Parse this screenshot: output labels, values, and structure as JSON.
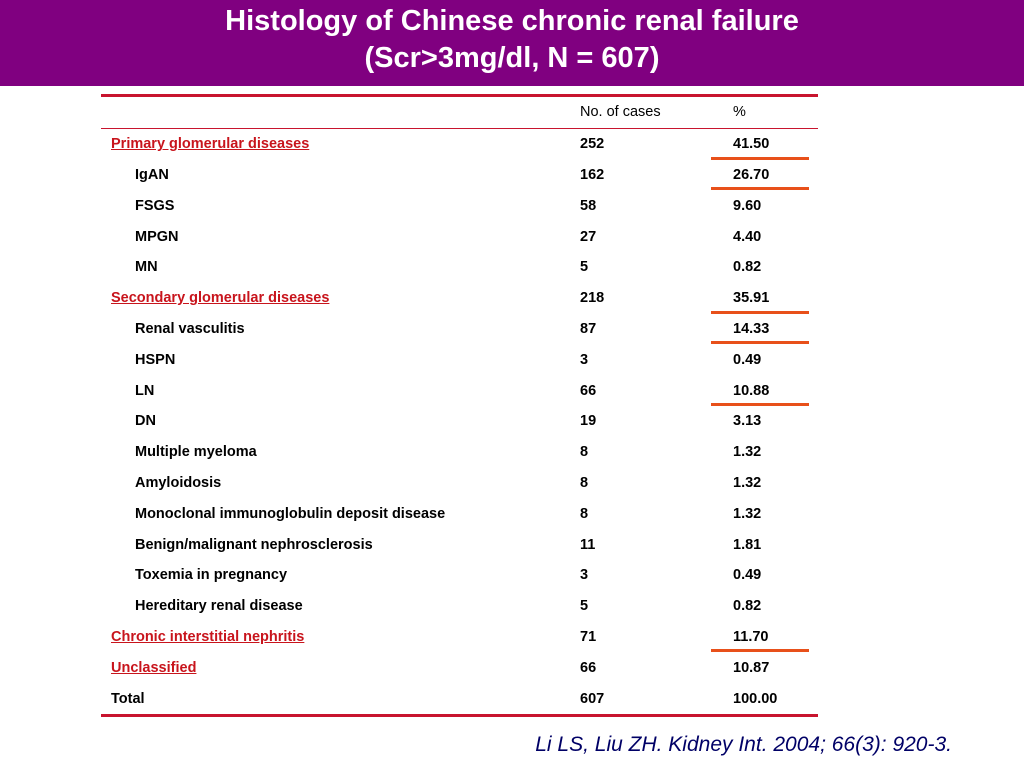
{
  "title": {
    "line1": "Histology of Chinese chronic renal failure",
    "line2": "(Scr>3mg/dl,  N = 607)"
  },
  "table": {
    "headers": [
      "",
      "No. of cases",
      "%"
    ],
    "rows": [
      {
        "name": "Primary glomerular diseases",
        "cases": "252",
        "pct": "41.50",
        "kind": "category",
        "highlighted": true
      },
      {
        "name": "IgAN",
        "cases": "162",
        "pct": "26.70",
        "kind": "sub",
        "highlighted": true
      },
      {
        "name": "FSGS",
        "cases": "58",
        "pct": "9.60",
        "kind": "sub",
        "highlighted": false
      },
      {
        "name": "MPGN",
        "cases": "27",
        "pct": "4.40",
        "kind": "sub",
        "highlighted": false
      },
      {
        "name": "MN",
        "cases": "5",
        "pct": "0.82",
        "kind": "sub",
        "highlighted": false
      },
      {
        "name": "Secondary glomerular diseases",
        "cases": "218",
        "pct": "35.91",
        "kind": "category",
        "highlighted": true
      },
      {
        "name": "Renal vasculitis",
        "cases": "87",
        "pct": "14.33",
        "kind": "sub",
        "highlighted": true
      },
      {
        "name": "HSPN",
        "cases": "3",
        "pct": "0.49",
        "kind": "sub",
        "highlighted": false
      },
      {
        "name": "LN",
        "cases": "66",
        "pct": "10.88",
        "kind": "sub",
        "highlighted": true
      },
      {
        "name": "DN",
        "cases": "19",
        "pct": "3.13",
        "kind": "sub",
        "highlighted": false
      },
      {
        "name": "Multiple myeloma",
        "cases": "8",
        "pct": "1.32",
        "kind": "sub",
        "highlighted": false
      },
      {
        "name": "Amyloidosis",
        "cases": "8",
        "pct": "1.32",
        "kind": "sub",
        "highlighted": false
      },
      {
        "name": "Monoclonal immunoglobulin deposit disease",
        "cases": "8",
        "pct": "1.32",
        "kind": "sub",
        "highlighted": false
      },
      {
        "name": "Benign/malignant nephrosclerosis",
        "cases": "11",
        "pct": "1.81",
        "kind": "sub",
        "highlighted": false
      },
      {
        "name": "Toxemia in pregnancy",
        "cases": "3",
        "pct": "0.49",
        "kind": "sub",
        "highlighted": false
      },
      {
        "name": "Hereditary renal disease",
        "cases": "5",
        "pct": "0.82",
        "kind": "sub",
        "highlighted": false
      },
      {
        "name": "Chronic interstitial nephritis",
        "cases": "71",
        "pct": "11.70",
        "kind": "category",
        "highlighted": true
      },
      {
        "name": "Unclassified",
        "cases": "66",
        "pct": "10.87",
        "kind": "category",
        "highlighted": false
      },
      {
        "name": "Total",
        "cases": "607",
        "pct": "100.00",
        "kind": "total",
        "highlighted": false
      }
    ]
  },
  "citation": "Li LS, Liu ZH. Kidney Int. 2004; 66(3): 920-3.",
  "colors": {
    "title_background": "#800080",
    "category_text": "#c8141c",
    "table_rule": "#c8142e",
    "highlight_mark": "#e8501a",
    "citation_text": "#000066"
  }
}
